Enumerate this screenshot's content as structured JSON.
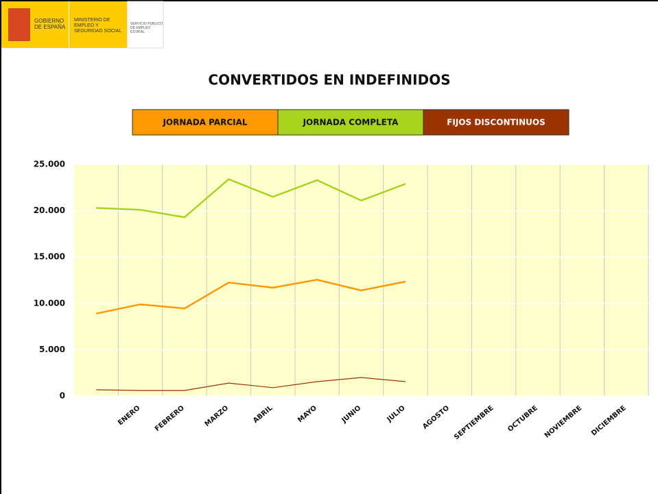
{
  "header": {
    "government": "GOBIERNO DE ESPAÑA",
    "ministry": "MINISTERIO DE EMPLEO Y SEGURIDAD SOCIAL",
    "service": "SERVICIO PÚBLICO DE EMPLEO ESTATAL"
  },
  "chart_data": {
    "type": "line",
    "title": "CONVERTIDOS EN INDEFINIDOS",
    "categories": [
      null,
      "ENERO",
      "FEBRERO",
      "MARZO",
      "ABRIL",
      "MAYO",
      "JUNIO",
      "JULIO",
      "AGOSTO",
      "SEPTIEMBRE",
      "OCTUBRE",
      "NOVIEMBRE",
      "DICIEMBRE"
    ],
    "series": [
      {
        "name": "JORNADA PARCIAL",
        "color": "#ff9900",
        "values": [
          8900,
          9900,
          9450,
          12250,
          11700,
          12550,
          11400,
          12350,
          null,
          null,
          null,
          null,
          null
        ]
      },
      {
        "name": "JORNADA COMPLETA",
        "color": "#a8d41e",
        "values": [
          20300,
          20100,
          19300,
          23400,
          21500,
          23300,
          21100,
          22900,
          null,
          null,
          null,
          null,
          null
        ]
      },
      {
        "name": "FIJOS DISCONTINUOS",
        "color": "#993300",
        "values": [
          670,
          600,
          600,
          1400,
          900,
          1550,
          2000,
          1550,
          null,
          null,
          null,
          null,
          null
        ]
      }
    ],
    "ylim": [
      0,
      25000
    ],
    "yticks": [
      0,
      {
        "value": 5000,
        "label": "5.000"
      },
      {
        "value": 10000,
        "label": "10.000"
      },
      {
        "value": 15000,
        "label": "15.000"
      },
      {
        "value": 20000,
        "label": "20.000"
      },
      {
        "value": 25000,
        "label": "25.000"
      }
    ],
    "grid": true
  }
}
